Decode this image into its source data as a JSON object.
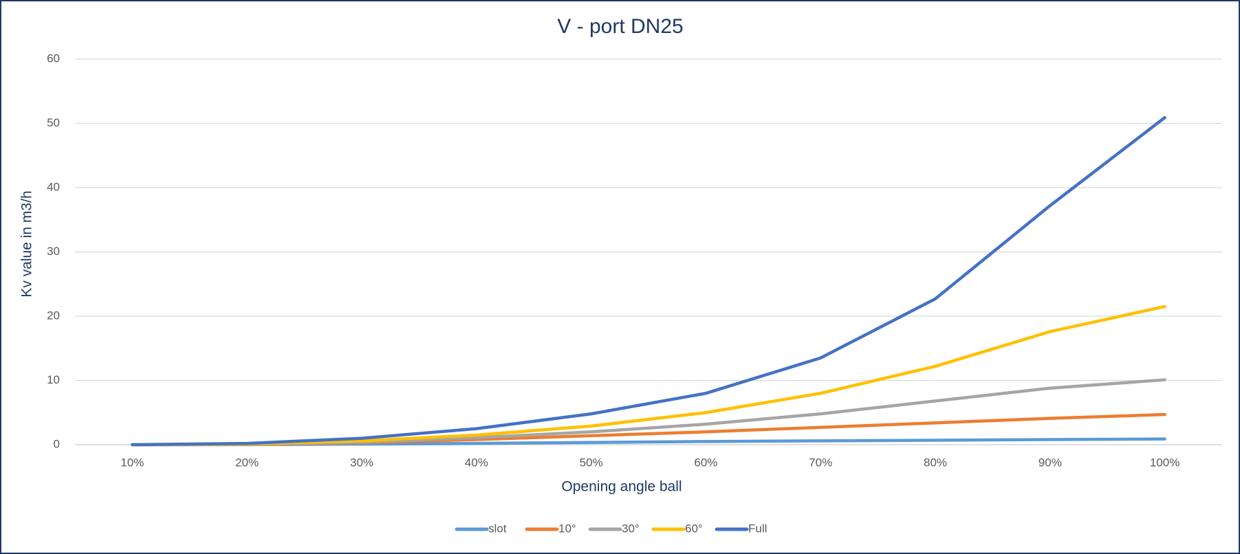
{
  "chart_data": {
    "type": "line",
    "title": "V - port DN25",
    "x_label": "Opening angle ball",
    "y_label": "Kv value in m3/h",
    "categories": [
      "10%",
      "20%",
      "30%",
      "40%",
      "50%",
      "60%",
      "70%",
      "80%",
      "90%",
      "100%"
    ],
    "series": [
      {
        "name": "slot",
        "color": "#5b9bd5",
        "values": [
          0,
          0.01,
          0.1,
          0.2,
          0.35,
          0.5,
          0.6,
          0.7,
          0.8,
          0.9
        ]
      },
      {
        "name": "10°",
        "color": "#ed7d31",
        "values": [
          0,
          0.03,
          0.3,
          0.8,
          1.4,
          2.0,
          2.7,
          3.4,
          4.1,
          4.7
        ]
      },
      {
        "name": "30°",
        "color": "#a5a5a5",
        "values": [
          0,
          0.05,
          0.4,
          1.1,
          2.0,
          3.2,
          4.8,
          6.8,
          8.8,
          10.1
        ]
      },
      {
        "name": "60°",
        "color": "#ffc000",
        "values": [
          0,
          0.1,
          0.6,
          1.5,
          2.9,
          5.0,
          8.0,
          12.2,
          17.6,
          21.5
        ]
      },
      {
        "name": "Full",
        "color": "#4472c4",
        "values": [
          0,
          0.2,
          1.0,
          2.5,
          4.8,
          8.0,
          13.5,
          22.7,
          37.2,
          50.9
        ]
      }
    ],
    "ylim": [
      0,
      60
    ],
    "yticks": [
      0,
      10,
      20,
      30,
      40,
      50,
      60
    ],
    "grid": true,
    "legend": "bottom"
  }
}
